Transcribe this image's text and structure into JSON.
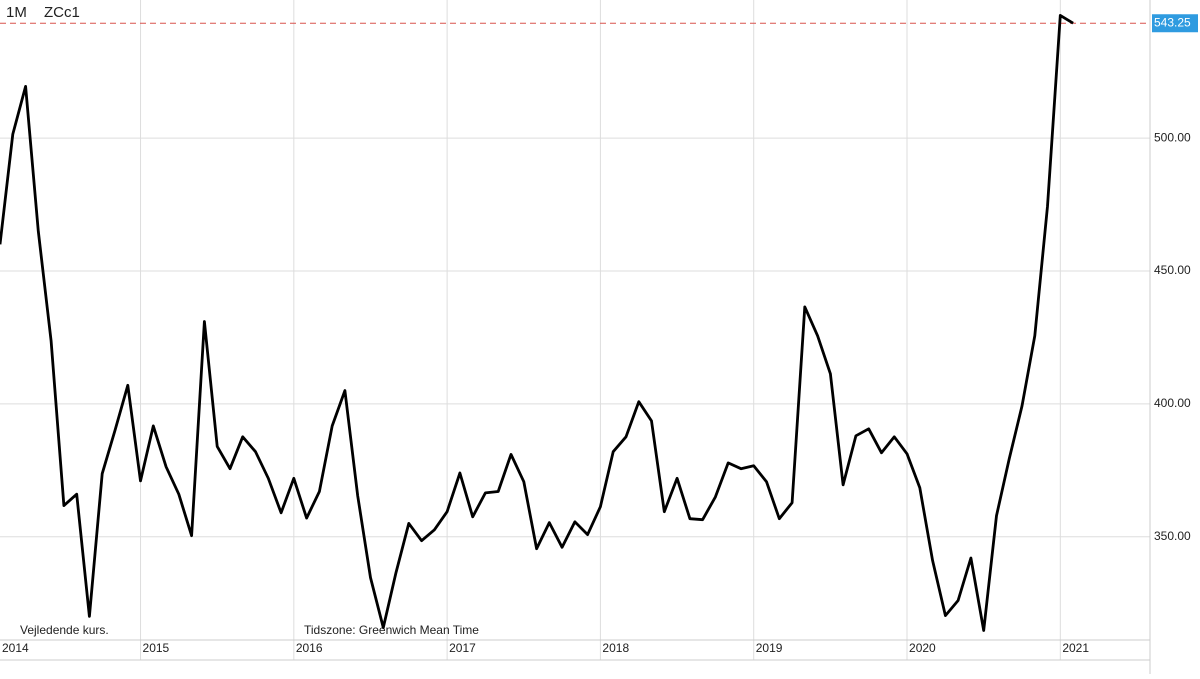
{
  "chart_data": {
    "type": "line",
    "interval": "1M",
    "symbol": "ZCc1",
    "note_left": "Vejledende kurs.",
    "note_center": "Tidszone: Greenwich Mean Time",
    "categories": [
      "2014",
      null,
      null,
      null,
      null,
      null,
      null,
      null,
      null,
      null,
      null,
      null,
      "2015",
      null,
      null,
      null,
      null,
      null,
      null,
      null,
      null,
      null,
      null,
      null,
      "2016",
      null,
      null,
      null,
      null,
      null,
      null,
      null,
      null,
      null,
      null,
      null,
      "2017",
      null,
      null,
      null,
      null,
      null,
      null,
      null,
      null,
      null,
      null,
      null,
      "2018",
      null,
      null,
      null,
      null,
      null,
      null,
      null,
      null,
      null,
      null,
      null,
      "2019",
      null,
      null,
      null,
      null,
      null,
      null,
      null,
      null,
      null,
      null,
      null,
      "2020",
      null,
      null,
      null,
      null,
      null,
      null,
      null,
      null,
      null,
      null,
      null,
      "2021",
      null
    ],
    "series": [
      {
        "color": "#000000",
        "values": [
          null,
          460,
          501.5,
          519.5,
          465,
          423.7,
          361.7,
          366,
          320,
          373.7,
          390,
          407,
          371,
          391.7,
          376.3,
          366,
          350.4,
          431,
          384,
          375.6,
          387.6,
          382,
          372,
          359,
          372,
          357,
          367,
          391.7,
          405,
          365.4,
          334.6,
          315.8,
          336.5,
          355,
          348.5,
          352.6,
          359.4,
          374,
          357.5,
          366.5,
          367,
          381,
          370.7,
          345.5,
          355.3,
          346,
          355.6,
          350.8,
          361.3,
          382,
          387.6,
          400.8,
          393.6,
          359.4,
          372,
          356.8,
          356.4,
          365,
          377.8,
          375.6,
          376.7,
          370.7,
          356.8,
          362.8,
          436.5,
          425.6,
          411.3,
          369.5,
          388,
          390.6,
          381.6,
          387.6,
          381.2,
          368.4,
          341,
          320.3,
          326,
          342,
          314.7,
          357.9,
          379.3,
          399.2,
          425.6,
          474.4,
          546.2,
          543.25
        ]
      }
    ],
    "last_price": 543.25,
    "last_price_color": "#d9534f",
    "badge_color": "#2f9be0",
    "ylim": [
      310,
      552
    ],
    "yticks": [
      {
        "value": 350,
        "label": "350.00"
      },
      {
        "value": 400,
        "label": "400.00"
      },
      {
        "value": 450,
        "label": "450.00"
      },
      {
        "value": 500,
        "label": "500.00"
      }
    ],
    "grid": true
  }
}
